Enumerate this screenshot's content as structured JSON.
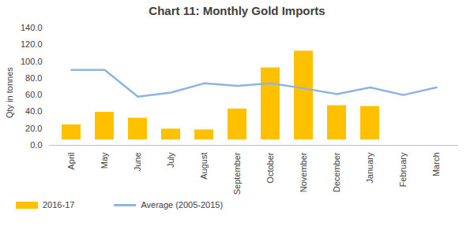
{
  "chart_data": {
    "type": "bar",
    "title": "Chart 11: Monthly Gold Imports",
    "y_label": "Qty in tonnes",
    "categories": [
      "April",
      "May",
      "June",
      "July",
      "August",
      "September",
      "October",
      "November",
      "December",
      "January",
      "February",
      "March"
    ],
    "series": [
      {
        "name": "2016-17",
        "type": "bar",
        "color": "#FFC000",
        "values": [
          31,
          46,
          39,
          26,
          25,
          50,
          99,
          119,
          54,
          53,
          null,
          null
        ]
      },
      {
        "name": "Average (2005-2015)",
        "type": "line",
        "color": "#8EB4E3",
        "values": [
          90,
          90,
          58,
          63,
          74,
          71,
          74,
          68,
          61,
          69,
          60,
          69
        ]
      }
    ],
    "ylim": [
      0,
      140
    ],
    "yticks": [
      {
        "value": 0,
        "label": "0.0"
      },
      {
        "value": 20,
        "label": "20.0"
      },
      {
        "value": 40,
        "label": "40.0"
      },
      {
        "value": 60,
        "label": "60.0"
      },
      {
        "value": 80,
        "label": "80.0"
      },
      {
        "value": 100,
        "label": "100.0"
      },
      {
        "value": 120,
        "label": "120.0"
      },
      {
        "value": 140,
        "label": "140.0"
      }
    ],
    "grid": false,
    "legend": "bottom"
  }
}
